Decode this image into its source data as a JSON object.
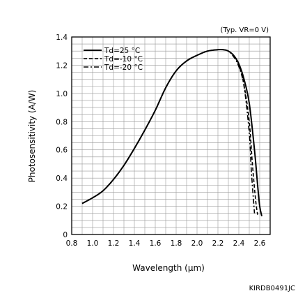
{
  "chart_data": {
    "type": "line",
    "title": "",
    "condition_note": "(Typ. VR=0 V)",
    "xlabel": "Wavelength (μm)",
    "ylabel": "Photosensitivity (A/W)",
    "xlim": [
      0.8,
      2.7
    ],
    "ylim": [
      0,
      1.4
    ],
    "xticks": [
      0.8,
      1.0,
      1.2,
      1.4,
      1.6,
      1.8,
      2.0,
      2.2,
      2.4,
      2.6
    ],
    "xtick_labels": [
      "0.8",
      "1.0",
      "1.2",
      "1.4",
      "1.6",
      "1.8",
      "2.0",
      "2.2",
      "2.4",
      "2.6"
    ],
    "yticks": [
      0,
      0.2,
      0.4,
      0.6,
      0.8,
      1.0,
      1.2,
      1.4
    ],
    "ytick_labels": [
      "0",
      "0.2",
      "0.4",
      "0.6",
      "0.8",
      "1.0",
      "1.2",
      "1.4"
    ],
    "grid": true,
    "legend_position": "top-left",
    "series": [
      {
        "name": "Td=25 °C",
        "style": "solid",
        "x": [
          0.9,
          1.0,
          1.1,
          1.2,
          1.3,
          1.4,
          1.5,
          1.6,
          1.7,
          1.8,
          1.9,
          2.0,
          2.1,
          2.2,
          2.25,
          2.3,
          2.35,
          2.4,
          2.45,
          2.5,
          2.55,
          2.58,
          2.6,
          2.62
        ],
        "y": [
          0.22,
          0.26,
          0.31,
          0.39,
          0.49,
          0.61,
          0.74,
          0.88,
          1.04,
          1.16,
          1.23,
          1.27,
          1.3,
          1.31,
          1.31,
          1.3,
          1.27,
          1.21,
          1.1,
          0.93,
          0.6,
          0.35,
          0.2,
          0.13
        ]
      },
      {
        "name": "Td=-10 °C",
        "style": "dashed",
        "x": [
          0.9,
          1.0,
          1.1,
          1.2,
          1.3,
          1.4,
          1.5,
          1.6,
          1.7,
          1.8,
          1.9,
          2.0,
          2.1,
          2.2,
          2.25,
          2.3,
          2.35,
          2.4,
          2.45,
          2.5,
          2.53,
          2.56,
          2.58
        ],
        "y": [
          0.22,
          0.26,
          0.31,
          0.39,
          0.49,
          0.61,
          0.74,
          0.88,
          1.04,
          1.16,
          1.23,
          1.27,
          1.3,
          1.31,
          1.31,
          1.3,
          1.27,
          1.2,
          1.06,
          0.8,
          0.5,
          0.25,
          0.14
        ]
      },
      {
        "name": "Td=-20 °C",
        "style": "dash-dot",
        "x": [
          0.9,
          1.0,
          1.1,
          1.2,
          1.3,
          1.4,
          1.5,
          1.6,
          1.7,
          1.8,
          1.9,
          2.0,
          2.1,
          2.2,
          2.25,
          2.3,
          2.35,
          2.4,
          2.45,
          2.5,
          2.52,
          2.55
        ],
        "y": [
          0.22,
          0.26,
          0.31,
          0.39,
          0.49,
          0.61,
          0.74,
          0.88,
          1.04,
          1.16,
          1.23,
          1.27,
          1.3,
          1.31,
          1.31,
          1.3,
          1.26,
          1.19,
          1.05,
          0.72,
          0.45,
          0.15
        ]
      }
    ],
    "document_code": "KIRDB0491JC"
  }
}
